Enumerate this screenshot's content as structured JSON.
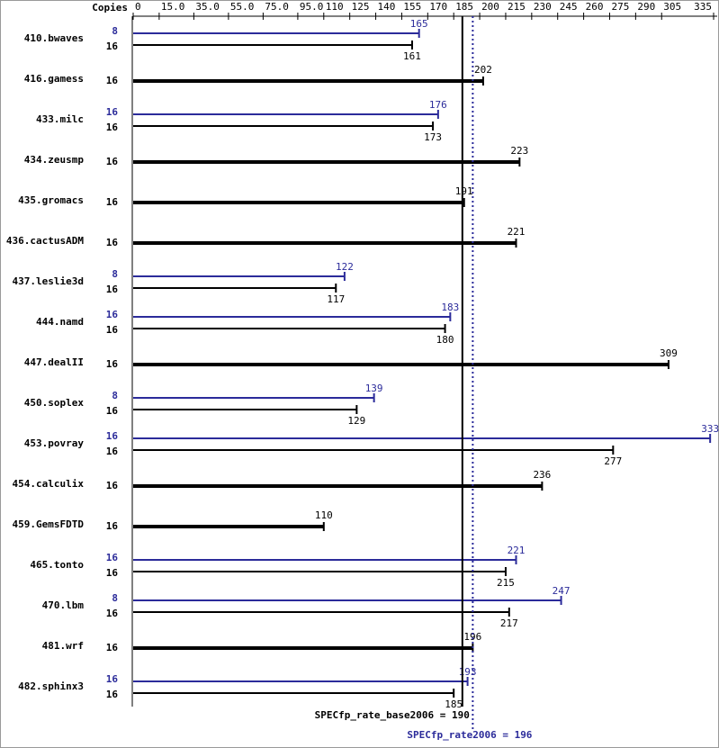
{
  "chart_data": {
    "type": "bar",
    "copies_header": "Copies",
    "xlim": [
      0,
      335
    ],
    "xticks": [
      0,
      {
        "value": 15,
        "label": "15.0"
      },
      {
        "value": 35,
        "label": "35.0"
      },
      {
        "value": 55,
        "label": "55.0"
      },
      {
        "value": 75,
        "label": "75.0"
      },
      {
        "value": 95,
        "label": "95.0"
      },
      110,
      125,
      140,
      155,
      170,
      185,
      200,
      215,
      230,
      245,
      260,
      275,
      290,
      305,
      335
    ],
    "peak_color": "#2b2b9a",
    "base_color": "#000000",
    "benchmarks": [
      {
        "name": "410.bwaves",
        "peak": {
          "copies": 8,
          "value": 165
        },
        "base": {
          "copies": 16,
          "value": 161
        }
      },
      {
        "name": "416.gamess",
        "single": {
          "copies": 16,
          "value": 202
        }
      },
      {
        "name": "433.milc",
        "peak": {
          "copies": 16,
          "value": 176
        },
        "base": {
          "copies": 16,
          "value": 173
        }
      },
      {
        "name": "434.zeusmp",
        "single": {
          "copies": 16,
          "value": 223
        }
      },
      {
        "name": "435.gromacs",
        "single": {
          "copies": 16,
          "value": 191
        }
      },
      {
        "name": "436.cactusADM",
        "single": {
          "copies": 16,
          "value": 221
        }
      },
      {
        "name": "437.leslie3d",
        "peak": {
          "copies": 8,
          "value": 122
        },
        "base": {
          "copies": 16,
          "value": 117
        }
      },
      {
        "name": "444.namd",
        "peak": {
          "copies": 16,
          "value": 183
        },
        "base": {
          "copies": 16,
          "value": 180
        }
      },
      {
        "name": "447.dealII",
        "single": {
          "copies": 16,
          "value": 309
        }
      },
      {
        "name": "450.soplex",
        "peak": {
          "copies": 8,
          "value": 139
        },
        "base": {
          "copies": 16,
          "value": 129
        }
      },
      {
        "name": "453.povray",
        "peak": {
          "copies": 16,
          "value": 333
        },
        "base": {
          "copies": 16,
          "value": 277
        }
      },
      {
        "name": "454.calculix",
        "single": {
          "copies": 16,
          "value": 236
        }
      },
      {
        "name": "459.GemsFDTD",
        "single": {
          "copies": 16,
          "value": 110
        }
      },
      {
        "name": "465.tonto",
        "peak": {
          "copies": 16,
          "value": 221
        },
        "base": {
          "copies": 16,
          "value": 215
        }
      },
      {
        "name": "470.lbm",
        "peak": {
          "copies": 8,
          "value": 247
        },
        "base": {
          "copies": 16,
          "value": 217
        }
      },
      {
        "name": "481.wrf",
        "single": {
          "copies": 16,
          "value": 196
        }
      },
      {
        "name": "482.sphinx3",
        "peak": {
          "copies": 16,
          "value": 193
        },
        "base": {
          "copies": 16,
          "value": 185
        }
      }
    ],
    "base_metric": {
      "label": "SPECfp_rate_base2006 = 190",
      "value": 190
    },
    "peak_metric": {
      "label": "SPECfp_rate2006 = 196",
      "value": 196
    }
  }
}
